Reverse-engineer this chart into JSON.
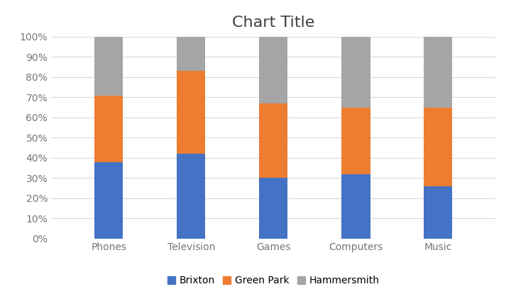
{
  "title": "Chart Title",
  "categories": [
    "Phones",
    "Television",
    "Games",
    "Computers",
    "Music"
  ],
  "series": [
    {
      "name": "Brixton",
      "values": [
        0.38,
        0.42,
        0.3,
        0.32,
        0.26
      ],
      "color": "#4472C4"
    },
    {
      "name": "Green Park",
      "values": [
        0.33,
        0.41,
        0.37,
        0.33,
        0.39
      ],
      "color": "#ED7D31"
    },
    {
      "name": "Hammersmith",
      "values": [
        0.29,
        0.17,
        0.33,
        0.35,
        0.35
      ],
      "color": "#A5A5A5"
    }
  ],
  "ylim": [
    0,
    1.0
  ],
  "yticks": [
    0.0,
    0.1,
    0.2,
    0.3,
    0.4,
    0.5,
    0.6,
    0.7,
    0.8,
    0.9,
    1.0
  ],
  "ytick_labels": [
    "0%",
    "10%",
    "20%",
    "30%",
    "40%",
    "50%",
    "60%",
    "70%",
    "80%",
    "90%",
    "100%"
  ],
  "background_color": "#FFFFFF",
  "grid_color": "#D9D9D9",
  "title_fontsize": 16,
  "tick_fontsize": 10,
  "legend_fontsize": 10,
  "bar_width": 0.35,
  "title_color": "#404040",
  "tick_color": "#767676"
}
